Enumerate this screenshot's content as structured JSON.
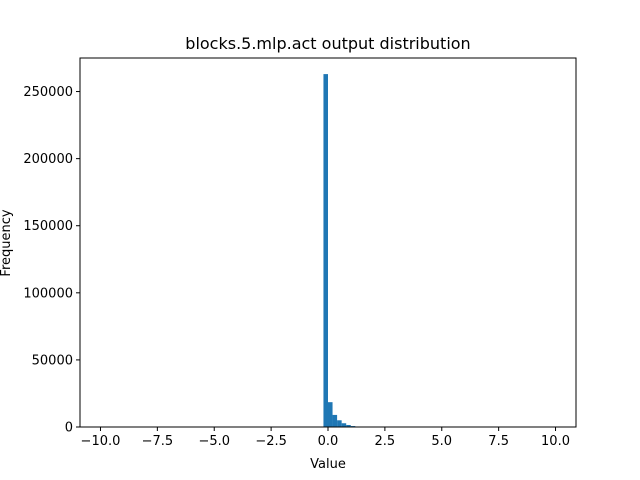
{
  "chart_data": {
    "type": "bar",
    "title": "blocks.5.mlp.act output distribution",
    "xlabel": "Value",
    "ylabel": "Frequency",
    "xlim": [
      -10.9,
      10.9
    ],
    "ylim": [
      0,
      275000
    ],
    "xticks": [
      -10.0,
      -7.5,
      -5.0,
      -2.5,
      0.0,
      2.5,
      5.0,
      7.5,
      10.0
    ],
    "xtick_labels": [
      "−10.0",
      "−7.5",
      "−5.0",
      "−2.5",
      "0.0",
      "2.5",
      "5.0",
      "7.5",
      "10.0"
    ],
    "yticks": [
      0,
      50000,
      100000,
      150000,
      200000,
      250000
    ],
    "ytick_labels": [
      "0",
      "50000",
      "100000",
      "150000",
      "200000",
      "250000"
    ],
    "bin_width": 0.2,
    "grid": false,
    "color": "#1f77b4",
    "bins": [
      {
        "x0": -0.2,
        "x1": 0.0,
        "count": 263000
      },
      {
        "x0": 0.0,
        "x1": 0.2,
        "count": 18500
      },
      {
        "x0": 0.2,
        "x1": 0.4,
        "count": 9000
      },
      {
        "x0": 0.4,
        "x1": 0.6,
        "count": 5000
      },
      {
        "x0": 0.6,
        "x1": 0.8,
        "count": 2800
      },
      {
        "x0": 0.8,
        "x1": 1.0,
        "count": 1500
      },
      {
        "x0": 1.0,
        "x1": 1.2,
        "count": 700
      },
      {
        "x0": 1.2,
        "x1": 1.4,
        "count": 300
      },
      {
        "x0": 1.4,
        "x1": 1.6,
        "count": 100
      }
    ]
  }
}
